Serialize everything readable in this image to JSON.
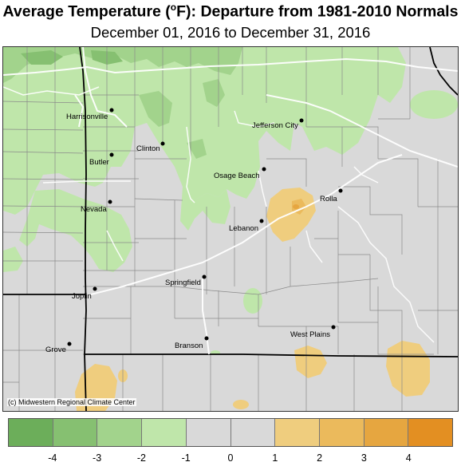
{
  "title_main": "Average Temperature (",
  "title_unit_sup": "o",
  "title_rest": "F): Departure from 1981-2010 Normals",
  "subtitle": "December 01, 2016 to December 31, 2016",
  "credit": "(c) Midwestern Regional Climate Center",
  "cities": [
    {
      "name": "Harrisonville"
    },
    {
      "name": "Clinton"
    },
    {
      "name": "Jefferson City"
    },
    {
      "name": "Butler"
    },
    {
      "name": "Osage Beach"
    },
    {
      "name": "Rolla"
    },
    {
      "name": "Nevada"
    },
    {
      "name": "Lebanon"
    },
    {
      "name": "Springfield"
    },
    {
      "name": "Joplin"
    },
    {
      "name": "West Plains"
    },
    {
      "name": "Branson"
    },
    {
      "name": "Grove"
    }
  ],
  "legend": {
    "bins": [
      {
        "color": "#6cae5a"
      },
      {
        "color": "#86c071"
      },
      {
        "color": "#a2d38c"
      },
      {
        "color": "#bfe6aa"
      },
      {
        "color": "#d9d9d9"
      },
      {
        "color": "#d9d9d9"
      },
      {
        "color": "#efcd7e"
      },
      {
        "color": "#ebba5c"
      },
      {
        "color": "#e6a640"
      },
      {
        "color": "#e38f22"
      }
    ],
    "ticks": [
      "-4",
      "-3",
      "-2",
      "-1",
      "0",
      "1",
      "2",
      "3",
      "4"
    ]
  }
}
